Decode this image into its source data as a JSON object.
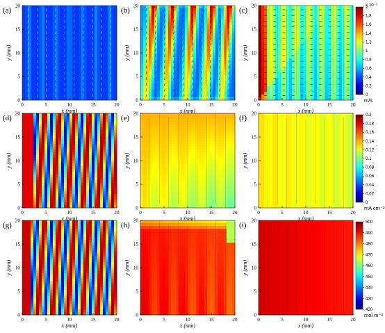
{
  "chart_data": {
    "type": "heatmap",
    "panels": [
      {
        "id": "a",
        "label": "(a)",
        "xlabel": "x (mm)",
        "ylabel": "y (mm)",
        "xlim": [
          0,
          20
        ],
        "ylim": [
          0,
          20
        ],
        "xticks": [
          "0",
          "5",
          "10",
          "15",
          "20"
        ],
        "yticks": [
          "0",
          "5",
          "10",
          "15",
          "20"
        ],
        "field": "velocity",
        "variant": "low"
      },
      {
        "id": "b",
        "label": "(b)",
        "xlabel": "x (mm)",
        "ylabel": "y (mm)",
        "xlim": [
          0,
          20
        ],
        "ylim": [
          0,
          20
        ],
        "xticks": [
          "0",
          "5",
          "10",
          "15",
          "20"
        ],
        "yticks": [
          "0",
          "5",
          "10",
          "15",
          "20"
        ],
        "field": "velocity",
        "variant": "serpentine"
      },
      {
        "id": "c",
        "label": "(c)",
        "xlabel": "x (mm)",
        "ylabel": "y (mm)",
        "xlim": [
          0,
          20
        ],
        "ylim": [
          0,
          20
        ],
        "xticks": [
          "0",
          "5",
          "10",
          "15",
          "20"
        ],
        "yticks": [
          "0",
          "5",
          "10",
          "15",
          "20"
        ],
        "field": "velocity",
        "variant": "interdigitated"
      },
      {
        "id": "d",
        "label": "(d)",
        "xlabel": "x (mm)",
        "ylabel": "y (mm)",
        "xlim": [
          0,
          20
        ],
        "ylim": [
          0,
          20
        ],
        "xticks": [
          "0",
          "5",
          "10",
          "15",
          "20"
        ],
        "yticks": [
          "0",
          "5",
          "10",
          "15",
          "20"
        ],
        "field": "current",
        "variant": "waves"
      },
      {
        "id": "e",
        "label": "(e)",
        "xlabel": "x (mm)",
        "ylabel": "y (mm)",
        "xlim": [
          0,
          20
        ],
        "ylim": [
          0,
          20
        ],
        "xticks": [
          "0",
          "5",
          "10",
          "15",
          "20"
        ],
        "yticks": [
          "0",
          "5",
          "10",
          "15",
          "20"
        ],
        "field": "current",
        "variant": "serpentine"
      },
      {
        "id": "f",
        "label": "(f)",
        "xlabel": "x (mm)",
        "ylabel": "y (mm)",
        "xlim": [
          0,
          20
        ],
        "ylim": [
          0,
          20
        ],
        "xticks": [
          "0",
          "5",
          "10",
          "15",
          "20"
        ],
        "yticks": [
          "0",
          "5",
          "10",
          "15",
          "20"
        ],
        "field": "current",
        "variant": "uniform"
      },
      {
        "id": "g",
        "label": "(g)",
        "xlabel": "x (mm)",
        "ylabel": "y (mm)",
        "xlim": [
          0,
          20
        ],
        "ylim": [
          0,
          20
        ],
        "xticks": [
          "0",
          "5",
          "10",
          "15",
          "20"
        ],
        "yticks": [
          "0",
          "5",
          "10",
          "15",
          "20"
        ],
        "field": "concentration",
        "variant": "waves"
      },
      {
        "id": "h",
        "label": "(h)",
        "xlabel": "x (mm)",
        "ylabel": "y (mm)",
        "xlim": [
          0,
          20
        ],
        "ylim": [
          0,
          20
        ],
        "xticks": [
          "0",
          "5",
          "10",
          "15",
          "20"
        ],
        "yticks": [
          "0",
          "5",
          "10",
          "15",
          "20"
        ],
        "field": "concentration",
        "variant": "serpentine"
      },
      {
        "id": "i",
        "label": "(i)",
        "xlabel": "x (mm)",
        "ylabel": "y (mm)",
        "xlim": [
          0,
          20
        ],
        "ylim": [
          0,
          20
        ],
        "xticks": [
          "0",
          "5",
          "10",
          "15",
          "20"
        ],
        "yticks": [
          "0",
          "5",
          "10",
          "15",
          "20"
        ],
        "field": "concentration",
        "variant": "uniform"
      }
    ],
    "colorbars": [
      {
        "row": 1,
        "unit": "m/s",
        "exponent": "x 10⁻²",
        "min": 0,
        "max": 2,
        "ticks": [
          "2",
          "1.8",
          "1.6",
          "1.4",
          "1.2",
          "1",
          "0.8",
          "0.6",
          "0.4",
          "0.2",
          "0"
        ]
      },
      {
        "row": 2,
        "unit": "mA cm⁻²",
        "min": 0,
        "max": 0.2,
        "ticks": [
          "0.2",
          "0.18",
          "0.16",
          "0.14",
          "0.12",
          "0.1",
          "0.08",
          "0.06",
          "0.04",
          "0.02",
          "0"
        ]
      },
      {
        "row": 3,
        "unit": "mol m⁻³",
        "min": 420,
        "max": 500,
        "ticks": [
          "500",
          "490",
          "480",
          "470",
          "460",
          "450",
          "440",
          "430",
          "420"
        ]
      }
    ],
    "colormap": "jet"
  }
}
